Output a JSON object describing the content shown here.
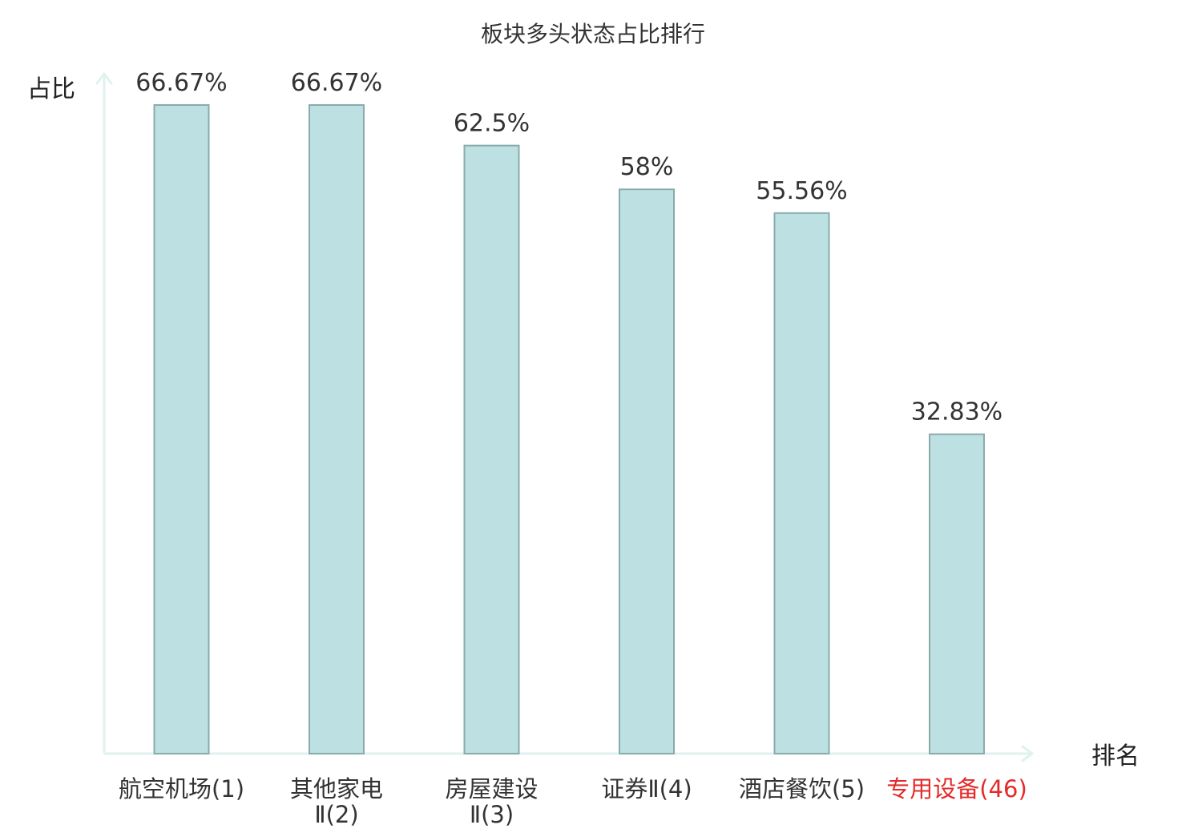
{
  "chart_data": {
    "type": "bar",
    "title": "板块多头状态占比排行",
    "ylabel": "占比",
    "xlabel": "排名",
    "ylim": [
      0,
      70
    ],
    "categories": [
      {
        "name": "航空机场",
        "rank": "(1)",
        "highlight": false
      },
      {
        "name": "其他家电",
        "name2": "Ⅱ",
        "rank": "(2)",
        "highlight": false
      },
      {
        "name": "房屋建设",
        "name2": "Ⅱ",
        "rank": "(3)",
        "highlight": false
      },
      {
        "name": "证券Ⅱ",
        "rank": "(4)",
        "highlight": false
      },
      {
        "name": "酒店餐饮",
        "rank": "(5)",
        "highlight": false
      },
      {
        "name": "专用设备",
        "rank": "(46)",
        "highlight": true
      }
    ],
    "values": [
      66.67,
      66.67,
      62.5,
      58,
      55.56,
      32.83
    ],
    "value_labels": [
      "66.67%",
      "66.67%",
      "62.5%",
      "58%",
      "55.56%",
      "32.83%"
    ],
    "grid": false,
    "colors": {
      "bar_fill": "#bde0e2",
      "bar_stroke": "#8aabab",
      "axis": "#e0f2ef",
      "text": "#333333",
      "highlight": "#e52a2a"
    }
  }
}
